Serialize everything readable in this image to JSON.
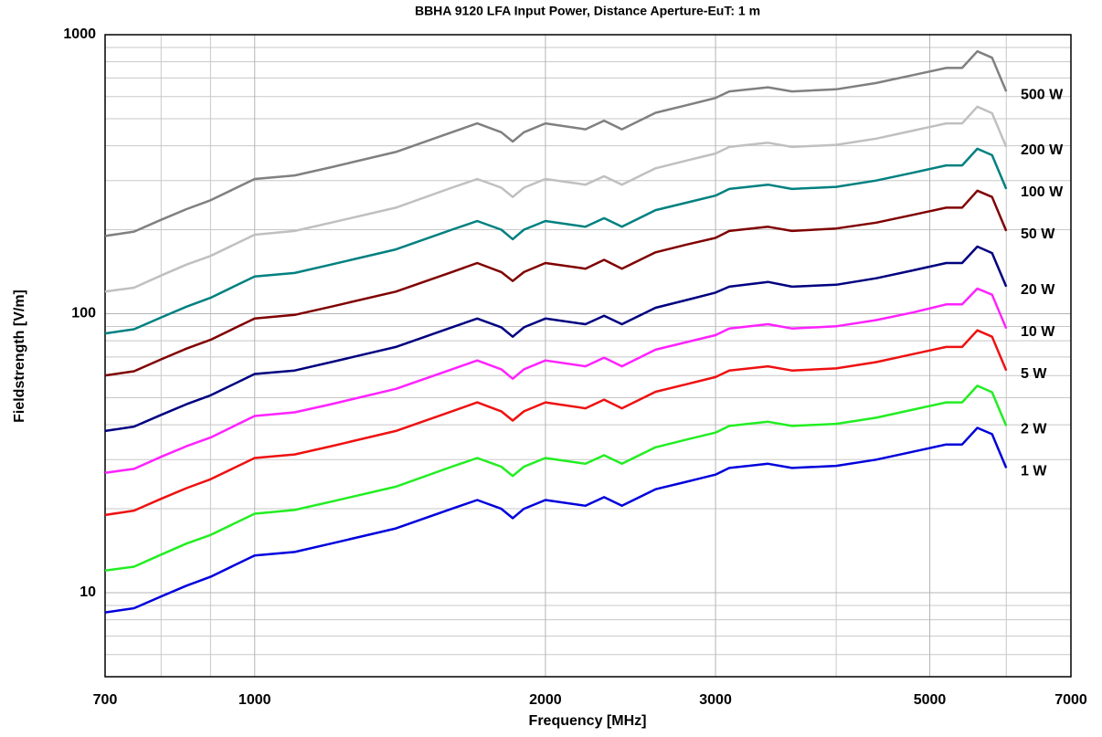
{
  "chart_data": {
    "type": "line",
    "title": "BBHA 9120 LFA Input Power, Distance Aperture-EuT: 1 m",
    "xlabel": "Frequency [MHz]",
    "ylabel": "Fieldstrength [V/m]",
    "xscale": "log",
    "yscale": "log",
    "grid": true,
    "xlim": [
      700,
      7000
    ],
    "ylim": [
      5,
      1000
    ],
    "xticks": [
      700,
      1000,
      2000,
      3000,
      5000,
      7000
    ],
    "xminor_ticks": [
      800,
      900,
      4000,
      6000
    ],
    "yticks": [
      10,
      100,
      1000
    ],
    "yminor_ticks": [
      6,
      7,
      8,
      9,
      20,
      30,
      40,
      50,
      60,
      70,
      80,
      90,
      200,
      300,
      400,
      500,
      600,
      700,
      800,
      900
    ],
    "x": [
      700,
      750,
      800,
      850,
      900,
      1000,
      1100,
      1200,
      1400,
      1600,
      1700,
      1800,
      1850,
      1900,
      2000,
      2200,
      2300,
      2400,
      2600,
      2800,
      3000,
      3100,
      3400,
      3600,
      4000,
      4400,
      4800,
      5200,
      5400,
      5600,
      5800,
      6000
    ],
    "series": [
      {
        "name": "500 W",
        "color": "#808080",
        "values": [
          190,
          197,
          217,
          237,
          255,
          304,
          313,
          335,
          380,
          447,
          481,
          447,
          414,
          447,
          481,
          458,
          492,
          458,
          525,
          559,
          593,
          626,
          648,
          626,
          637,
          671,
          716,
          760,
          760,
          872,
          827,
          626
        ]
      },
      {
        "name": "200 W",
        "color": "#c0c0c0",
        "values": [
          120,
          124,
          137,
          150,
          161,
          192,
          198,
          212,
          240,
          283,
          304,
          283,
          262,
          283,
          304,
          290,
          311,
          290,
          332,
          354,
          375,
          396,
          410,
          396,
          403,
          424,
          453,
          481,
          481,
          552,
          523,
          396
        ]
      },
      {
        "name": "100 W",
        "color": "#008080",
        "values": [
          85,
          88,
          97,
          106,
          114,
          136,
          140,
          150,
          170,
          200,
          215,
          200,
          185,
          200,
          215,
          205,
          220,
          205,
          235,
          250,
          265,
          280,
          290,
          280,
          285,
          300,
          320,
          340,
          340,
          390,
          370,
          280
        ]
      },
      {
        "name": "50 W",
        "color": "#800000",
        "values": [
          60.1,
          62.2,
          68.6,
          75.0,
          80.6,
          96.2,
          99.0,
          106,
          120,
          141,
          152,
          141,
          131,
          141,
          152,
          145,
          156,
          145,
          166,
          177,
          187,
          198,
          205,
          198,
          202,
          212,
          226,
          240,
          240,
          276,
          262,
          198
        ]
      },
      {
        "name": "20 W",
        "color": "#000080",
        "values": [
          38.0,
          39.4,
          43.4,
          47.4,
          51.0,
          60.8,
          62.6,
          67.1,
          76.0,
          89.4,
          96.1,
          89.4,
          82.7,
          89.4,
          96.1,
          91.7,
          98.4,
          91.7,
          105,
          112,
          119,
          125,
          130,
          125,
          127,
          134,
          143,
          152,
          152,
          174,
          165,
          125
        ]
      },
      {
        "name": "10 W",
        "color": "#ff22ff",
        "values": [
          26.9,
          27.8,
          30.7,
          33.5,
          36.0,
          43.0,
          44.3,
          47.4,
          53.8,
          63.2,
          68.0,
          63.2,
          58.5,
          63.2,
          68.0,
          64.8,
          69.6,
          64.8,
          74.3,
          79.1,
          83.8,
          88.5,
          91.7,
          88.5,
          90.1,
          94.9,
          101,
          108,
          108,
          123,
          117,
          88.5
        ]
      },
      {
        "name": "5 W",
        "color": "#ee1111",
        "values": [
          19.0,
          19.7,
          21.7,
          23.7,
          25.5,
          30.4,
          31.3,
          33.5,
          38.0,
          44.7,
          48.1,
          44.7,
          41.4,
          44.7,
          48.1,
          45.8,
          49.2,
          45.8,
          52.5,
          55.9,
          59.3,
          62.6,
          64.8,
          62.6,
          63.7,
          67.1,
          71.6,
          76.0,
          76.0,
          87.2,
          82.7,
          62.6
        ]
      },
      {
        "name": "2 W",
        "color": "#22ee22",
        "values": [
          12.0,
          12.4,
          13.7,
          15.0,
          16.1,
          19.2,
          19.8,
          21.2,
          24.0,
          28.3,
          30.4,
          28.3,
          26.2,
          28.3,
          30.4,
          29.0,
          31.1,
          29.0,
          33.2,
          35.4,
          37.5,
          39.6,
          41.0,
          39.6,
          40.3,
          42.4,
          45.3,
          48.1,
          48.1,
          55.2,
          52.3,
          39.6
        ]
      },
      {
        "name": "1 W",
        "color": "#0000dd",
        "values": [
          8.5,
          8.8,
          9.7,
          10.6,
          11.4,
          13.6,
          14,
          15,
          17,
          20,
          21.5,
          20,
          18.5,
          20,
          21.5,
          20.5,
          22,
          20.5,
          23.5,
          25,
          26.5,
          28,
          29,
          28,
          28.5,
          30,
          32,
          34,
          34,
          39,
          37,
          28
        ]
      }
    ]
  }
}
